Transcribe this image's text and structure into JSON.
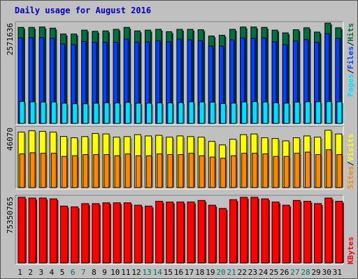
{
  "title": "Daily usage for August 2016",
  "colors": {
    "hits": "#007040",
    "files": "#0040ff",
    "pages": "#00e0ff",
    "visits": "#ffff00",
    "sites": "#ff8800",
    "kbytes": "#ff0000",
    "weekend_day": "#007060",
    "weekday": "#000000",
    "legend_sep": "#000000"
  },
  "chart_data": [
    {
      "type": "bar",
      "panel": "hits-files-pages",
      "ymax_label": "2571636",
      "ylim": [
        0,
        2571636
      ],
      "legend": [
        "Pages",
        "/",
        "Files",
        "/",
        "Hits"
      ],
      "categories": [
        "1",
        "2",
        "3",
        "4",
        "5",
        "6",
        "7",
        "8",
        "9",
        "10",
        "11",
        "12",
        "13",
        "14",
        "15",
        "16",
        "17",
        "18",
        "19",
        "20",
        "21",
        "22",
        "23",
        "24",
        "25",
        "26",
        "27",
        "28",
        "29",
        "30",
        "31"
      ],
      "weekend": [
        6,
        7,
        13,
        14,
        20,
        21,
        27,
        28
      ],
      "series": [
        {
          "key": "hits",
          "values": [
            2460000,
            2460000,
            2470000,
            2440000,
            2290000,
            2290000,
            2390000,
            2360000,
            2370000,
            2410000,
            2460000,
            2370000,
            2390000,
            2410000,
            2350000,
            2410000,
            2410000,
            2400000,
            2240000,
            2260000,
            2410000,
            2470000,
            2470000,
            2460000,
            2390000,
            2320000,
            2400000,
            2450000,
            2340000,
            2570000,
            2450000
          ]
        },
        {
          "key": "files",
          "values": [
            2190000,
            2200000,
            2200000,
            2180000,
            2040000,
            2020000,
            2100000,
            2080000,
            2080000,
            2080000,
            2160000,
            2080000,
            2090000,
            2120000,
            2090000,
            2160000,
            2140000,
            2120000,
            1980000,
            1980000,
            2140000,
            2190000,
            2180000,
            2190000,
            2090000,
            2020000,
            2110000,
            2150000,
            2080000,
            2300000,
            2180000
          ]
        },
        {
          "key": "pages",
          "values": [
            564000,
            555000,
            548000,
            550000,
            520000,
            505000,
            505000,
            520000,
            530000,
            525000,
            540000,
            520000,
            520000,
            525000,
            525000,
            535000,
            555000,
            550000,
            545000,
            510000,
            520000,
            550000,
            560000,
            550000,
            530000,
            520000,
            545000,
            555000,
            555000,
            560000,
            555000
          ]
        }
      ]
    },
    {
      "type": "bar",
      "panel": "visits-sites",
      "ymax_label": "46070",
      "ylim": [
        0,
        46070
      ],
      "legend": [
        "Sites",
        "/",
        "Visits"
      ],
      "categories": [
        "1",
        "2",
        "3",
        "4",
        "5",
        "6",
        "7",
        "8",
        "9",
        "10",
        "11",
        "12",
        "13",
        "14",
        "15",
        "16",
        "17",
        "18",
        "19",
        "20",
        "21",
        "22",
        "23",
        "24",
        "25",
        "26",
        "27",
        "28",
        "29",
        "30",
        "31"
      ],
      "series": [
        {
          "key": "visits",
          "values": [
            42700,
            43700,
            43200,
            42700,
            39300,
            38300,
            39200,
            41600,
            41200,
            38800,
            39200,
            40700,
            39700,
            40200,
            38800,
            39700,
            39200,
            38800,
            35500,
            32800,
            37200,
            40700,
            41200,
            38300,
            37700,
            35900,
            38300,
            39700,
            38800,
            44100,
            41200
          ]
        },
        {
          "key": "sites",
          "values": [
            25900,
            26800,
            26400,
            26400,
            24000,
            24500,
            25400,
            25400,
            25400,
            24500,
            25900,
            24500,
            24500,
            25900,
            25400,
            25400,
            26400,
            24500,
            23500,
            22600,
            24500,
            26400,
            26400,
            25900,
            24000,
            24000,
            26400,
            27300,
            25400,
            29100,
            25400
          ]
        }
      ]
    },
    {
      "type": "bar",
      "panel": "kbytes",
      "ymax_label": "75350765",
      "ylim": [
        0,
        75350765
      ],
      "legend": [
        "KBytes"
      ],
      "categories": [
        "1",
        "2",
        "3",
        "4",
        "5",
        "6",
        "7",
        "8",
        "9",
        "10",
        "11",
        "12",
        "13",
        "14",
        "15",
        "16",
        "17",
        "18",
        "19",
        "20",
        "21",
        "22",
        "23",
        "24",
        "25",
        "26",
        "27",
        "28",
        "29",
        "30",
        "31"
      ],
      "series": [
        {
          "key": "kbytes",
          "values": [
            74700000,
            73800000,
            73800000,
            72900000,
            64700000,
            63800000,
            67500000,
            67500000,
            68400000,
            68400000,
            68400000,
            65700000,
            64700000,
            70200000,
            69300000,
            69300000,
            69300000,
            71100000,
            65700000,
            62000000,
            72000000,
            74700000,
            74700000,
            72900000,
            69300000,
            65700000,
            71100000,
            70200000,
            67500000,
            73800000,
            70200000
          ]
        }
      ]
    }
  ]
}
